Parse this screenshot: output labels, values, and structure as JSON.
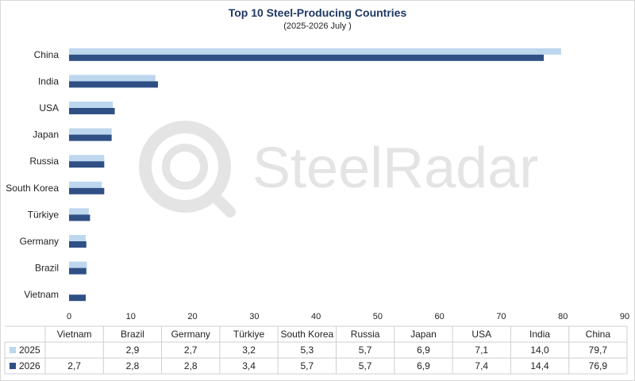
{
  "watermark": "SteelRadar",
  "chart_data": {
    "type": "bar",
    "orientation": "horizontal",
    "title": "Top 10 Steel-Producing Countries",
    "subtitle": "(2025-2026 July )",
    "categories": [
      "Vietnam",
      "Brazil",
      "Germany",
      "Türkiye",
      "South Korea",
      "Russia",
      "Japan",
      "USA",
      "India",
      "China"
    ],
    "series": [
      {
        "name": "2025",
        "color": "#bdd7ee",
        "values": [
          null,
          2.9,
          2.7,
          3.2,
          5.3,
          5.7,
          6.9,
          7.1,
          14.0,
          79.7
        ],
        "labels": [
          "",
          "2,9",
          "2,7",
          "3,2",
          "5,3",
          "5,7",
          "6,9",
          "7,1",
          "14,0",
          "79,7"
        ]
      },
      {
        "name": "2026",
        "color": "#2f4f85",
        "values": [
          2.7,
          2.8,
          2.8,
          3.4,
          5.7,
          5.7,
          6.9,
          7.4,
          14.4,
          76.9
        ],
        "labels": [
          "2,7",
          "2,8",
          "2,8",
          "3,4",
          "5,7",
          "5,7",
          "6,9",
          "7,4",
          "14,4",
          "76,9"
        ]
      }
    ],
    "xlim": [
      0,
      90
    ],
    "xticks": [
      0,
      10,
      20,
      30,
      40,
      50,
      60,
      70,
      80,
      90
    ],
    "data_table": true,
    "grid": false
  }
}
